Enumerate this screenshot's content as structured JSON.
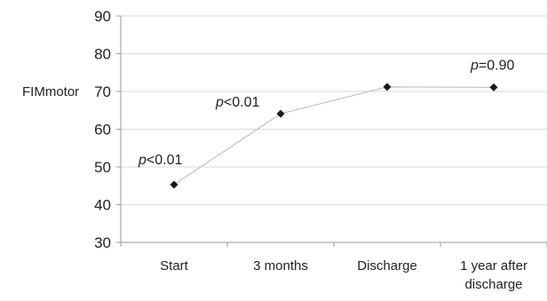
{
  "chart_data": {
    "type": "line",
    "title": "",
    "xlabel": "",
    "ylabel": "FIMmotor",
    "categories": [
      "Start",
      "3 months",
      "Discharge",
      "1 year after discharge"
    ],
    "category_lines": [
      [
        "Start"
      ],
      [
        "3 months"
      ],
      [
        "Discharge"
      ],
      [
        "1 year after",
        "discharge"
      ]
    ],
    "values": [
      45.3,
      64.1,
      71.2,
      71.1
    ],
    "ylim": [
      30,
      90
    ],
    "yticks": [
      30,
      40,
      50,
      60,
      70,
      80,
      90
    ],
    "grid": true,
    "legend": "none",
    "marker": "diamond",
    "annotations": [
      {
        "italic": "p",
        "text": "<0.01",
        "near_category": "Start"
      },
      {
        "italic": "p",
        "text": "<0.01",
        "near_category": "3 months"
      },
      {
        "italic": "p",
        "text": "=0.90",
        "near_category": "1 year after discharge"
      }
    ],
    "colors": {
      "line": "#b8b8b8",
      "marker": "#1a1a1a",
      "grid": "#d9d9d9",
      "axis": "#9a9a9a"
    }
  }
}
